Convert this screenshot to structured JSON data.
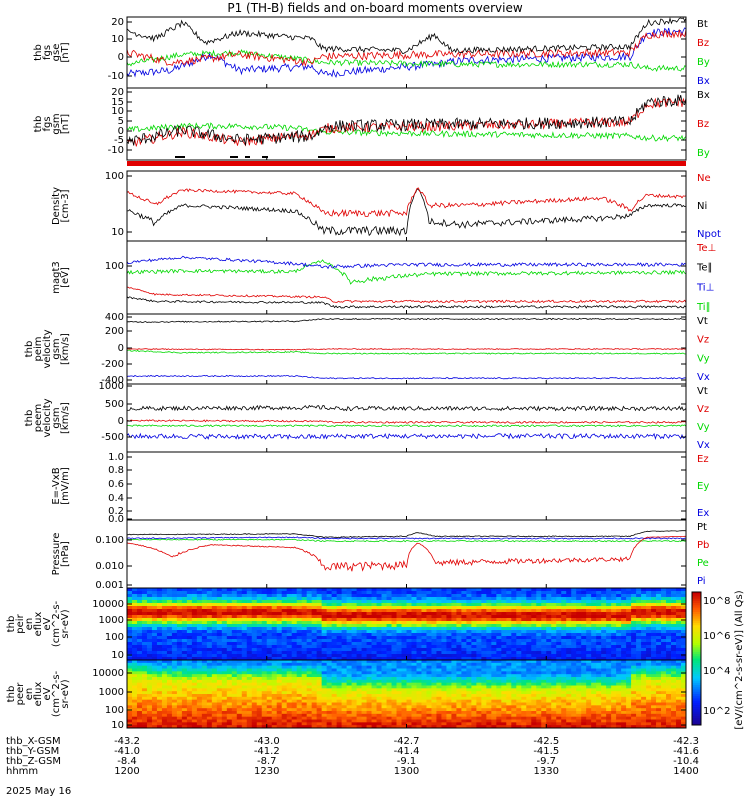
{
  "title": "P1 (TH-B) fields and on-board moments overview",
  "date_label": "2025 May 16",
  "colorbar_label": "[eV/(cm^2-s-sr-eV)] (All Qs)",
  "colorbar_ticks": [
    "10^8",
    "10^6",
    "10^4",
    "10^2"
  ],
  "x_axis": {
    "rows": [
      {
        "name": "thb_X-GSM",
        "values": [
          "-43.2",
          "-43.0",
          "-42.7",
          "-42.5",
          "-42.3"
        ]
      },
      {
        "name": "thb_Y-GSM",
        "values": [
          "-41.0",
          "-41.2",
          "-41.4",
          "-41.5",
          "-41.6"
        ]
      },
      {
        "name": "thb_Z-GSM",
        "values": [
          "-8.4",
          "-8.7",
          "-9.1",
          "-9.7",
          "-10.4"
        ]
      },
      {
        "name": "hhmm",
        "values": [
          "1200",
          "1230",
          "1300",
          "1330",
          "1400"
        ]
      }
    ]
  },
  "colors": {
    "black": "#000000",
    "red": "#e00000",
    "green": "#00d800",
    "blue": "#0000e0"
  },
  "panels": [
    {
      "id": "fgs-gse",
      "ylabel": [
        "thb",
        "fgs",
        "gse",
        "[nT]"
      ],
      "yticks": [
        "20",
        "10",
        "0",
        "-10"
      ],
      "legend": [
        {
          "t": "Bt",
          "c": "#000000"
        },
        {
          "t": "Bz",
          "c": "#e00000"
        },
        {
          "t": "By",
          "c": "#00d800"
        },
        {
          "t": "Bx",
          "c": "#0000e0"
        }
      ]
    },
    {
      "id": "fgs-gsm",
      "ylabel": [
        "thb",
        "fgs",
        "gsm",
        "[nT]"
      ],
      "yticks": [
        "20",
        "15",
        "10",
        "5",
        "0",
        "-5",
        "-10"
      ],
      "legend": [
        {
          "t": "Bx",
          "c": "#000000"
        },
        {
          "t": "Bz",
          "c": "#e00000"
        },
        {
          "t": "By",
          "c": "#00d800"
        }
      ]
    },
    {
      "id": "density",
      "ylabel": [
        "Density",
        "[cm-3]"
      ],
      "yticks": [
        "100",
        "10"
      ],
      "legend": [
        {
          "t": "Ne",
          "c": "#e00000"
        },
        {
          "t": "Ni",
          "c": "#000000"
        },
        {
          "t": "Npot",
          "c": "#0000e0"
        }
      ]
    },
    {
      "id": "temperature",
      "ylabel": [
        "magt3",
        "[eV]"
      ],
      "yticks": [
        "100"
      ],
      "legend": [
        {
          "t": "Te⊥",
          "c": "#e00000"
        },
        {
          "t": "Te∥",
          "c": "#000000"
        },
        {
          "t": "Ti⊥",
          "c": "#0000e0"
        },
        {
          "t": "Ti∥",
          "c": "#00d800"
        }
      ]
    },
    {
      "id": "peim-velocity",
      "ylabel": [
        "thb",
        "peim",
        "velocity",
        "gsm",
        "[km/s]"
      ],
      "yticks": [
        "400",
        "200",
        "0",
        "-200",
        "-400"
      ],
      "legend": [
        {
          "t": "Vt",
          "c": "#000000"
        },
        {
          "t": "Vz",
          "c": "#e00000"
        },
        {
          "t": "Vy",
          "c": "#00d800"
        },
        {
          "t": "Vx",
          "c": "#0000e0"
        }
      ]
    },
    {
      "id": "peem-velocity",
      "ylabel": [
        "thb",
        "peem",
        "velocity",
        "gsm",
        "[km/s]"
      ],
      "yticks": [
        "1000",
        "500",
        "0",
        "-500"
      ],
      "legend": [
        {
          "t": "Vt",
          "c": "#000000"
        },
        {
          "t": "Vz",
          "c": "#e00000"
        },
        {
          "t": "Vy",
          "c": "#00d800"
        },
        {
          "t": "Vx",
          "c": "#0000e0"
        }
      ]
    },
    {
      "id": "efield",
      "ylabel": [
        "E=-VxB",
        "[mV/m]"
      ],
      "yticks": [
        "1.0",
        "0.8",
        "0.6",
        "0.4",
        "0.2",
        "0.0"
      ],
      "legend": [
        {
          "t": "Ez",
          "c": "#e00000"
        },
        {
          "t": "Ey",
          "c": "#00d800"
        },
        {
          "t": "Ex",
          "c": "#0000e0"
        }
      ]
    },
    {
      "id": "pressure",
      "ylabel": [
        "Pressure",
        "[nPa]"
      ],
      "yticks": [
        "0.100",
        "0.010",
        "0.001"
      ],
      "legend": [
        {
          "t": "Pt",
          "c": "#000000"
        },
        {
          "t": "Pb",
          "c": "#e00000"
        },
        {
          "t": "Pe",
          "c": "#00d800"
        },
        {
          "t": "Pi",
          "c": "#0000e0"
        }
      ]
    },
    {
      "id": "peir-spectrogram",
      "ylabel": [
        "thb",
        "peir",
        "en",
        "eflux",
        "eV",
        "(cm^2-s-",
        "sr-eV)"
      ],
      "yticks": [
        "10000",
        "1000",
        "100",
        "10"
      ],
      "legend": []
    },
    {
      "id": "peer-spectrogram",
      "ylabel": [
        "thb",
        "peer",
        "en",
        "eflux",
        "eV",
        "(cm^2-s-",
        "sr-eV)"
      ],
      "yticks": [
        "10000",
        "1000",
        "100",
        "10"
      ],
      "legend": []
    }
  ],
  "chart_data": {
    "type": "line",
    "title": "P1 (TH-B) fields and on-board moments overview",
    "x": [
      "1200",
      "1215",
      "1230",
      "1245",
      "1300",
      "1315",
      "1330",
      "1345",
      "1400"
    ],
    "xlabel": "hhmm",
    "subplots": [
      {
        "ylabel": "thb fgs gse [nT]",
        "ylim": [
          -15,
          21
        ],
        "series": [
          {
            "name": "Bt",
            "values": [
              14,
              13,
              12,
              9,
              5,
              3,
              4,
              6,
              19
            ]
          },
          {
            "name": "Bz",
            "values": [
              3,
              0,
              2,
              -2,
              1,
              2,
              2,
              3,
              12
            ]
          },
          {
            "name": "By",
            "values": [
              -3,
              2,
              3,
              0,
              -2,
              -3,
              -3,
              -3,
              -4
            ]
          },
          {
            "name": "Bx",
            "values": [
              -8,
              -2,
              -6,
              -4,
              -3,
              -1,
              0,
              1,
              13
            ]
          }
        ]
      },
      {
        "ylabel": "thb fgs gsm [nT]",
        "ylim": [
          -15,
          21
        ],
        "series": [
          {
            "name": "Bx",
            "values": [
              -6,
              0,
              -5,
              -3,
              2,
              3,
              4,
              4,
              15
            ]
          },
          {
            "name": "Bz",
            "values": [
              -7,
              -1,
              -6,
              -2,
              1,
              2,
              3,
              4,
              14
            ]
          },
          {
            "name": "By",
            "values": [
              0,
              2,
              2,
              1,
              -1,
              -2,
              -2,
              -3,
              -4
            ]
          }
        ]
      },
      {
        "ylabel": "Density [cm-3]",
        "ylim": [
          8,
          110
        ],
        "series": [
          {
            "name": "Ne",
            "values": [
              50,
              55,
              48,
              22,
              35,
              30,
              40,
              35,
              42
            ]
          },
          {
            "name": "Ni",
            "values": [
              25,
              26,
              24,
              11,
              16,
              14,
              18,
              16,
              30
            ]
          },
          {
            "name": "Npot",
            "values": []
          }
        ]
      },
      {
        "ylabel": "magt3 [eV]",
        "ylim": [
          10,
          300
        ],
        "series": [
          {
            "name": "Te⊥",
            "values": [
              30,
              25,
              24,
              18,
              20,
              19,
              19,
              19,
              19
            ]
          },
          {
            "name": "Te∥",
            "values": [
              22,
              18,
              17,
              14,
              15,
              14,
              14,
              14,
              14
            ]
          },
          {
            "name": "Ti⊥",
            "values": [
              110,
              100,
              105,
              90,
              100,
              95,
              100,
              98,
              100
            ]
          },
          {
            "name": "Ti∥",
            "values": [
              75,
              70,
              72,
              45,
              55,
              60,
              65,
              62,
              70
            ]
          }
        ]
      },
      {
        "ylabel": "thb peim velocity gsm [km/s]",
        "ylim": [
          -440,
          440
        ],
        "series": [
          {
            "name": "Vt",
            "values": [
              360,
              350,
              370,
              400,
              400,
              400,
              400,
              400,
              400
            ]
          },
          {
            "name": "Vz",
            "values": [
              0,
              -10,
              -10,
              0,
              0,
              0,
              0,
              0,
              0
            ]
          },
          {
            "name": "Vy",
            "values": [
              -20,
              -40,
              -40,
              -40,
              -60,
              -60,
              -60,
              -60,
              -60
            ]
          },
          {
            "name": "Vx",
            "values": [
              -360,
              -350,
              -360,
              -390,
              -390,
              -390,
              -390,
              -390,
              -390
            ]
          }
        ]
      },
      {
        "ylabel": "thb peem velocity gsm [km/s]",
        "ylim": [
          -800,
          1050
        ],
        "series": [
          {
            "name": "Vt",
            "values": [
              400,
              400,
              420,
              400,
              400,
              400,
              400,
              400,
              400
            ]
          },
          {
            "name": "Vz",
            "values": [
              50,
              0,
              50,
              0,
              0,
              0,
              0,
              0,
              0
            ]
          },
          {
            "name": "Vy",
            "values": [
              -100,
              -100,
              -100,
              -50,
              -100,
              -100,
              -100,
              -100,
              -100
            ]
          },
          {
            "name": "Vx",
            "values": [
              -400,
              -400,
              -400,
              -400,
              -400,
              -400,
              -400,
              -400,
              -400
            ]
          }
        ]
      },
      {
        "ylabel": "E=-VxB [mV/m]",
        "ylim": [
          0.0,
          1.0
        ],
        "series": [
          {
            "name": "Ez",
            "values": []
          },
          {
            "name": "Ey",
            "values": []
          },
          {
            "name": "Ex",
            "values": []
          }
        ]
      },
      {
        "ylabel": "Pressure [nPa]",
        "ylim": [
          0.0005,
          0.3
        ],
        "series": [
          {
            "name": "Pt",
            "values": [
              0.12,
              0.13,
              0.12,
              0.09,
              0.1,
              0.1,
              0.1,
              0.1,
              0.17
            ]
          },
          {
            "name": "Pb",
            "values": [
              0.05,
              0.03,
              0.04,
              0.004,
              0.006,
              0.006,
              0.006,
              0.009,
              0.09
            ]
          },
          {
            "name": "Pe",
            "values": [
              0.07,
              0.07,
              0.07,
              0.06,
              0.07,
              0.07,
              0.07,
              0.07,
              0.06
            ]
          },
          {
            "name": "Pi",
            "values": [
              0.08,
              0.09,
              0.09,
              0.08,
              0.09,
              0.09,
              0.09,
              0.09,
              0.08
            ]
          }
        ]
      }
    ],
    "spectrograms": [
      {
        "ylabel": "thb peir en eflux",
        "yrange_eV": [
          5,
          25000
        ],
        "scale": "log"
      },
      {
        "ylabel": "thb peer en eflux",
        "yrange_eV": [
          5,
          25000
        ],
        "scale": "log"
      }
    ],
    "colorbar": {
      "range": [
        100,
        1000000000
      ],
      "scale": "log"
    }
  }
}
